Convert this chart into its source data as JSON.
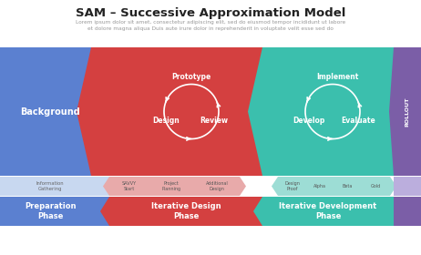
{
  "title": "SAM – Successive Approximation Model",
  "subtitle": "Lorem ipsum dolor sit amet, consectetur adipiscing elit, sed do eiusmod tempor incididunt ut labore\net dolore magna aliqua Duis aute irure dolor in reprehenderit in voluptate velit esse sed do",
  "bg_color": "#ffffff",
  "title_color": "#222222",
  "subtitle_color": "#999999",
  "blue_color": "#5b80d0",
  "red_color": "#d44040",
  "teal_color": "#3bbfad",
  "purple_color": "#7b5ea7",
  "light_blue": "#c8d8f0",
  "light_red": "#e8aaaa",
  "light_teal": "#9dddd5",
  "light_purple": "#bbaedd",
  "rollout_text": "ROLLOUT",
  "left_label": "Background",
  "cycle1_labels": [
    "Prototype",
    "Design",
    "Review"
  ],
  "cycle2_labels": [
    "Implement",
    "Develop",
    "Evaluate"
  ],
  "bottom_labels_blue": [
    "Information\nGathering"
  ],
  "bottom_labels_red": [
    "SAVVY\nStart",
    "Project\nPlanning",
    "Additional\nDesign"
  ],
  "bottom_labels_teal": [
    "Design\nProof",
    "Alpha",
    "Beta",
    "Gold"
  ],
  "phase_labels": [
    "Preparation\nPhase",
    "Iterative Design\nPhase",
    "Iterative Development\nPhase"
  ]
}
